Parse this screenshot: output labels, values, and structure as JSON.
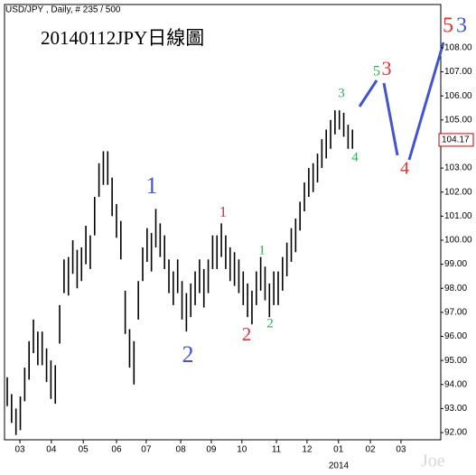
{
  "chart_data": {
    "type": "ohlc",
    "header": "USD/JPY , Daily, # 235 / 500",
    "title": "20140112JPY日線圖",
    "watermark": "Joe",
    "year_label": "2014",
    "color": "#000000",
    "high": [
      94.3,
      93.6,
      93.0,
      93.5,
      94.7,
      95.8,
      96.7,
      96.2,
      96.2,
      95.5,
      95.0,
      94.8,
      97.3,
      99.2,
      99.3,
      100.0,
      99.6,
      99.7,
      100.6,
      100.2,
      101.8,
      103.2,
      103.7,
      103.7,
      102.6,
      101.5,
      100.8,
      97.9,
      96.3,
      95.8,
      98.3,
      99.7,
      100.5,
      100.3,
      101.3,
      100.7,
      100.2,
      99.2,
      98.7,
      99.2,
      98.3,
      97.8,
      98.2,
      98.7,
      99.2,
      98.8,
      99.2,
      100.2,
      100.2,
      100.7,
      100.2,
      99.7,
      99.5,
      99.2,
      98.7,
      98.2,
      97.9,
      98.7,
      99.3,
      98.9,
      98.2,
      98.7,
      98.7,
      99.3,
      99.9,
      100.5,
      100.9,
      101.6,
      102.4,
      103.0,
      103.2,
      103.6,
      104.2,
      104.6,
      105.0,
      105.4,
      105.4,
      105.3,
      104.8,
      104.6
    ],
    "low": [
      93.1,
      92.4,
      91.9,
      92.1,
      93.3,
      94.2,
      95.3,
      94.8,
      94.8,
      94.1,
      93.4,
      93.2,
      95.7,
      97.8,
      97.7,
      98.6,
      98.0,
      98.3,
      99.0,
      98.8,
      100.2,
      101.8,
      102.3,
      102.3,
      101.0,
      100.1,
      99.2,
      96.1,
      94.7,
      94.0,
      96.7,
      98.3,
      99.1,
      98.7,
      99.7,
      99.3,
      98.8,
      97.8,
      97.3,
      97.8,
      96.7,
      96.2,
      96.8,
      97.3,
      97.8,
      97.2,
      97.8,
      98.8,
      98.8,
      99.3,
      98.8,
      98.3,
      98.1,
      97.8,
      97.3,
      96.8,
      96.5,
      97.3,
      97.9,
      97.5,
      96.8,
      97.3,
      97.3,
      97.9,
      98.5,
      99.1,
      99.5,
      100.4,
      101.2,
      101.8,
      102.0,
      102.4,
      103.0,
      103.4,
      103.8,
      104.4,
      104.6,
      104.3,
      103.8,
      103.8
    ],
    "last_price": 104.17,
    "xlim": [
      0,
      99
    ],
    "xticks": [
      {
        "value": 2.9,
        "label": "03"
      },
      {
        "value": 10.1,
        "label": "04"
      },
      {
        "value": 17.4,
        "label": "05"
      },
      {
        "value": 25,
        "label": "06"
      },
      {
        "value": 31.8,
        "label": "07"
      },
      {
        "value": 39.7,
        "label": "08"
      },
      {
        "value": 46.7,
        "label": "09"
      },
      {
        "value": 53.7,
        "label": "10"
      },
      {
        "value": 61.6,
        "label": "11"
      },
      {
        "value": 68.6,
        "label": "12"
      },
      {
        "value": 75.8,
        "label": "01"
      },
      {
        "value": 83.1,
        "label": "02"
      },
      {
        "value": 90.1,
        "label": "03"
      }
    ],
    "ylim": [
      91.7,
      109.8
    ],
    "yticks": [
      {
        "value": 92,
        "label": "92.00"
      },
      {
        "value": 93,
        "label": "93.00"
      },
      {
        "value": 94,
        "label": "94.00"
      },
      {
        "value": 95,
        "label": "95.00"
      },
      {
        "value": 96,
        "label": "96.00"
      },
      {
        "value": 97,
        "label": "97.00"
      },
      {
        "value": 98,
        "label": "98.00"
      },
      {
        "value": 99,
        "label": "99.00"
      },
      {
        "value": 100,
        "label": "100.00"
      },
      {
        "value": 101,
        "label": "101.00"
      },
      {
        "value": 102,
        "label": "102.00"
      },
      {
        "value": 103,
        "label": "103.00"
      },
      {
        "value": 104,
        "label": "104.00"
      },
      {
        "value": 105,
        "label": "105.00"
      },
      {
        "value": 106,
        "label": "106.00"
      },
      {
        "value": 107,
        "label": "107.00"
      },
      {
        "value": 108,
        "label": "108.00"
      }
    ],
    "annotations": [
      {
        "text": "1",
        "color": "#4455cc"
      },
      {
        "text": "2",
        "color": "#4455cc"
      },
      {
        "text": "1",
        "color": "#dd3333"
      },
      {
        "text": "2",
        "color": "#dd3333"
      },
      {
        "text": "1",
        "color": "#33aa55"
      },
      {
        "text": "2",
        "color": "#33aa55"
      },
      {
        "text": "3",
        "color": "#33aa55"
      },
      {
        "text": "4",
        "color": "#33aa55"
      },
      {
        "text": "5",
        "color": "#33aa55"
      },
      {
        "text": "3",
        "color": "#dd3333"
      },
      {
        "text": "4",
        "color": "#dd3333"
      },
      {
        "text": "5",
        "color": "#dd3333"
      },
      {
        "text": "3",
        "color": "#4455cc"
      }
    ]
  }
}
